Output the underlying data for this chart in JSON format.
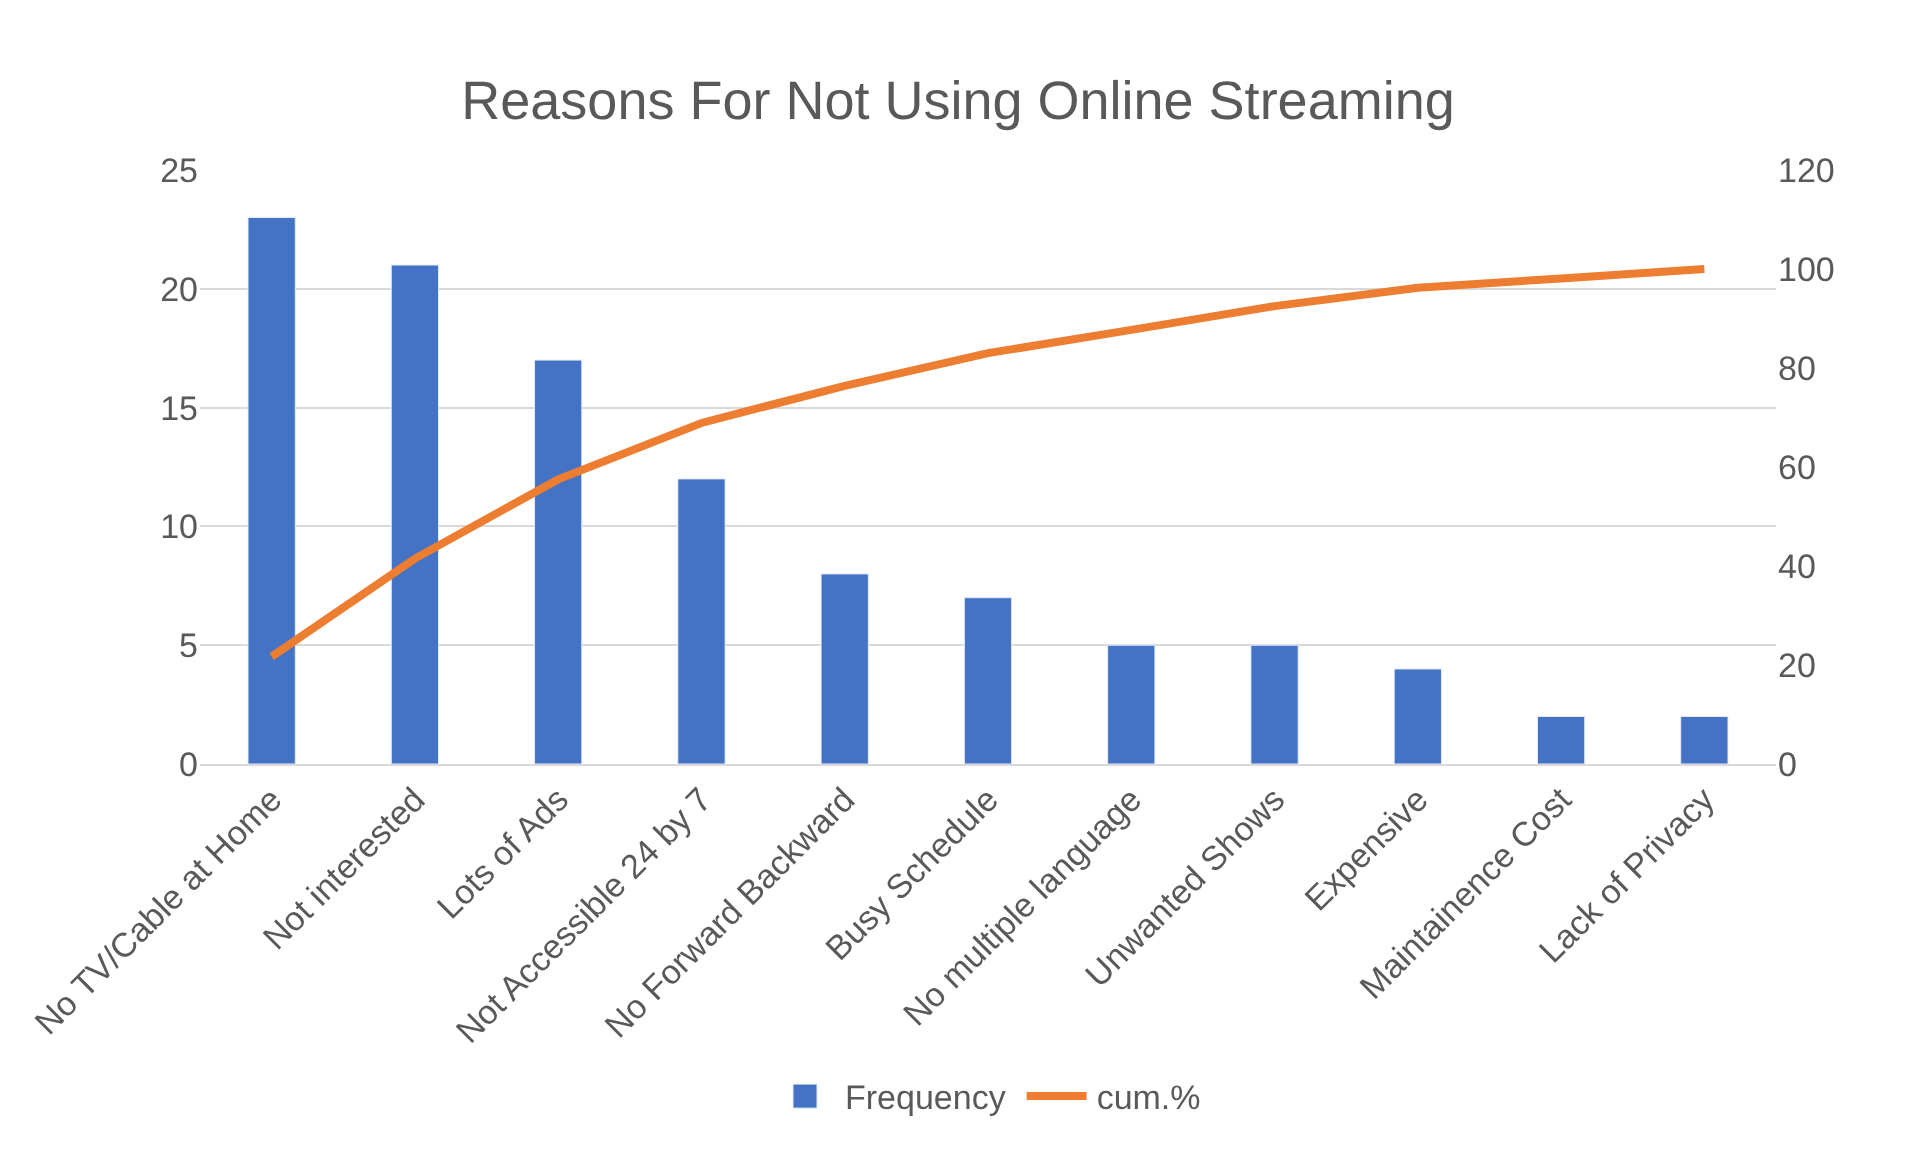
{
  "chart_data": {
    "type": "bar",
    "title": "Reasons For Not Using Online Streaming",
    "categories": [
      "No TV/Cable at Home",
      "Not interested",
      "Lots of Ads",
      "Not Accessible 24 by 7",
      "No Forward Backward",
      "Busy Schedule",
      "No multiple language",
      "Unwanted Shows",
      "Expensive",
      "Maintainence Cost",
      "Lack of Privacy"
    ],
    "series": [
      {
        "name": "Frequency",
        "color": "#4472c4",
        "values": [
          23,
          21,
          17,
          12,
          8,
          7,
          5,
          5,
          4,
          2,
          2
        ]
      },
      {
        "name": "cum.%",
        "type": "line",
        "axis": "y2",
        "color": "#ed7d31",
        "values": [
          21.7,
          41.5,
          57.5,
          68.9,
          76.4,
          83.0,
          87.7,
          92.5,
          96.2,
          98.1,
          100
        ]
      }
    ],
    "ylim": [
      0,
      25
    ],
    "yticks": [
      0,
      5,
      10,
      15,
      20,
      25
    ],
    "y2lim": [
      0,
      120
    ],
    "y2ticks": [
      0,
      20,
      40,
      60,
      80,
      100,
      120
    ],
    "grid": "y",
    "legend": "bottom",
    "marker": "none",
    "line_style": "solid"
  }
}
